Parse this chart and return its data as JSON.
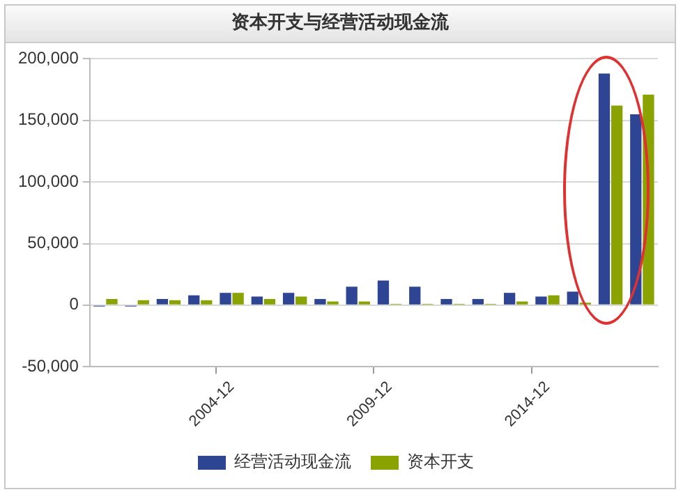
{
  "chart_data": {
    "type": "bar",
    "title": "资本开支与经营活动现金流",
    "categories": [
      null,
      null,
      null,
      null,
      "2004-12",
      null,
      null,
      null,
      null,
      "2009-12",
      null,
      null,
      null,
      null,
      "2014-12",
      null,
      null,
      null
    ],
    "series": [
      {
        "name": "经营活动现金流",
        "color": "#2e4593",
        "values": [
          -1000,
          -1000,
          5000,
          8000,
          10000,
          7000,
          10000,
          5000,
          15000,
          20000,
          15000,
          5000,
          5000,
          10000,
          7000,
          11000,
          188000,
          155000
        ]
      },
      {
        "name": "资本开支",
        "color": "#8aa300",
        "values": [
          5000,
          4000,
          4000,
          4000,
          10000,
          5000,
          7000,
          3000,
          3000,
          1000,
          1000,
          1000,
          1000,
          3000,
          8000,
          2000,
          162000,
          171000
        ]
      }
    ],
    "ylim": [
      -50000,
      200000
    ],
    "yticks": [
      {
        "value": -50000,
        "label": "-50,000"
      },
      0,
      {
        "value": 50000,
        "label": "50,000"
      },
      {
        "value": 100000,
        "label": "100,000"
      },
      {
        "value": 150000,
        "label": "150,000"
      },
      {
        "value": 200000,
        "label": "200,000"
      }
    ],
    "grid": "y",
    "legend": "bottom"
  }
}
